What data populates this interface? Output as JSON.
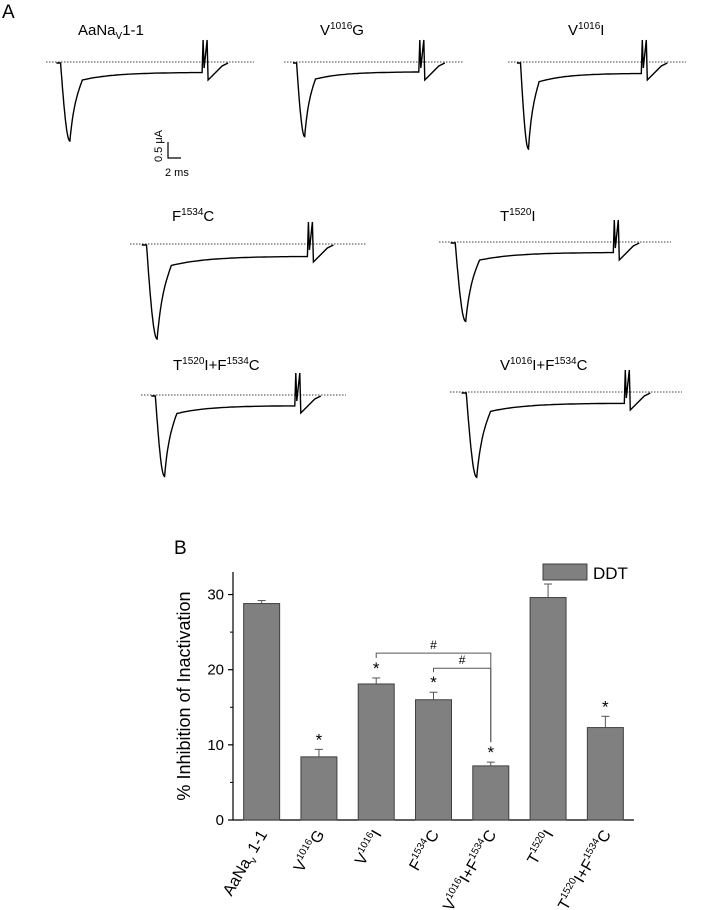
{
  "panel_a": {
    "label": "A",
    "traces": [
      {
        "label": {
          "main": "AaNa",
          "sub": "V",
          "post": "1-1"
        },
        "peak": 1.0
      },
      {
        "label": {
          "main": "V",
          "sup": "1016",
          "post": "G"
        },
        "peak": 0.92
      },
      {
        "label": {
          "main": "V",
          "sup": "1016",
          "post": "I"
        },
        "peak": 1.0
      },
      {
        "label": {
          "main": "F",
          "sup": "1534",
          "post": "C"
        },
        "peak": 1.0
      },
      {
        "label": {
          "main": "T",
          "sup": "1520",
          "post": "I"
        },
        "peak": 0.98
      },
      {
        "label": {
          "parts": [
            [
              "T",
              ""
            ],
            [
              "1520",
              "sup"
            ],
            [
              "I+F",
              ""
            ],
            [
              "1534",
              "sup"
            ],
            [
              "C",
              ""
            ]
          ]
        },
        "peak": 0.98
      },
      {
        "label": {
          "parts": [
            [
              "V",
              ""
            ],
            [
              "1016",
              "sup"
            ],
            [
              "I+F",
              ""
            ],
            [
              "1534",
              "sup"
            ],
            [
              "C",
              ""
            ]
          ]
        },
        "peak": 0.98
      }
    ],
    "scale_bar": {
      "current": "0.5 μA",
      "time": "2 ms"
    }
  },
  "chart_data": {
    "type": "bar",
    "panel_label": "B",
    "ylabel": "% Inhibition of Inactivation",
    "ylim": [
      0,
      33
    ],
    "yticks": [
      0,
      10,
      20,
      30
    ],
    "categories": [
      [
        [
          "AaNa",
          ""
        ],
        [
          "v",
          "sub"
        ],
        [
          " 1-1",
          ""
        ]
      ],
      [
        [
          "V",
          ""
        ],
        [
          "1016",
          "sup"
        ],
        [
          "G",
          ""
        ]
      ],
      [
        [
          "V",
          ""
        ],
        [
          "1016",
          "sup"
        ],
        [
          "I",
          ""
        ]
      ],
      [
        [
          "F",
          ""
        ],
        [
          "1534",
          "sup"
        ],
        [
          "C",
          ""
        ]
      ],
      [
        [
          "V",
          ""
        ],
        [
          "1016",
          "sup"
        ],
        [
          "I+F",
          ""
        ],
        [
          "1534",
          "sup"
        ],
        [
          "C",
          ""
        ]
      ],
      [
        [
          "T",
          ""
        ],
        [
          "1520",
          "sup"
        ],
        [
          "I",
          ""
        ]
      ],
      [
        [
          "T",
          ""
        ],
        [
          "1520",
          "sup"
        ],
        [
          "I+F",
          ""
        ],
        [
          "1534",
          "sup"
        ],
        [
          "C",
          ""
        ]
      ]
    ],
    "series": [
      {
        "name": "DDT",
        "values": [
          28.8,
          8.4,
          18.1,
          16.0,
          7.2,
          29.6,
          12.3
        ],
        "errors": [
          0.4,
          1.0,
          0.8,
          1.0,
          0.5,
          1.8,
          1.5
        ]
      }
    ],
    "significance": [
      "",
      "*",
      "*",
      "*",
      "*",
      "",
      "*"
    ],
    "brackets": [
      {
        "from": 2,
        "to": 4,
        "label": "#"
      },
      {
        "from": 3,
        "to": 4,
        "label": "#"
      }
    ],
    "legend_position": "top-right",
    "grid": false
  },
  "colors": {
    "bar_fill": "#808080",
    "bar_stroke": "#404040",
    "line": "#000000"
  }
}
